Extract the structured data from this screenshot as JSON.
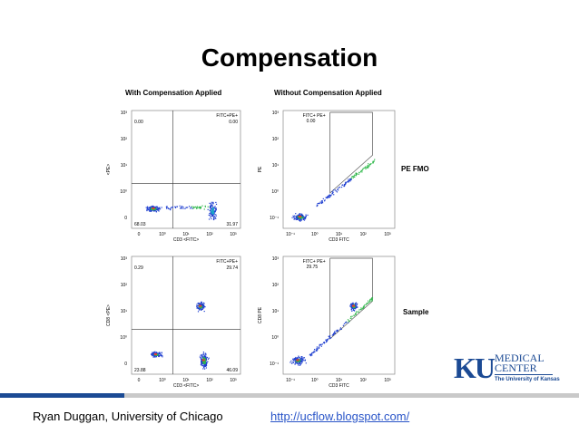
{
  "slide": {
    "title": "Compensation",
    "credit": "Ryan Duggan, University of Chicago",
    "link": "http://ucflow.blogspot.com/"
  },
  "figure": {
    "columns": [
      "With Compensation Applied",
      "Without Compensation Applied"
    ],
    "row_labels": [
      "PE FMO",
      "Sample"
    ],
    "panels": [
      {
        "id": "with-fmo",
        "ylabel": "<PE>",
        "xlabel": "CD3 <FITC>",
        "y_ticks": [
          "10³",
          "10²",
          "10¹",
          "10⁰",
          "0"
        ],
        "x_ticks": [
          "0",
          "10⁰",
          "10¹",
          "10²",
          "10³"
        ],
        "gate_label": "FITC+PE+",
        "quadrants": {
          "ul": "0.00",
          "ur": "0.00",
          "ll": "68.03",
          "lr": "31.97"
        }
      },
      {
        "id": "without-fmo",
        "ylabel": "PE",
        "xlabel": "CD3 FITC",
        "y_ticks": [
          "10³",
          "10²",
          "10¹",
          "10⁰",
          "10⁻¹"
        ],
        "x_ticks": [
          "10⁻¹",
          "10⁰",
          "10¹",
          "10²",
          "10³"
        ],
        "gate_label": "FITC+ PE+",
        "gate_value": "0.00"
      },
      {
        "id": "with-sample",
        "ylabel": "CD8 <PE>",
        "xlabel": "CD3 <FITC>",
        "y_ticks": [
          "10³",
          "10²",
          "10¹",
          "10⁰",
          "0"
        ],
        "x_ticks": [
          "0",
          "10⁰",
          "10¹",
          "10²",
          "10³"
        ],
        "gate_label": "FITC+PE+",
        "quadrants": {
          "ul": "0.29",
          "ur": "29.74",
          "ll": "23.88",
          "lr": "46.09"
        }
      },
      {
        "id": "without-sample",
        "ylabel": "CD8 PE",
        "xlabel": "CD3 FITC",
        "y_ticks": [
          "10³",
          "10²",
          "10¹",
          "10⁰",
          "10⁻¹"
        ],
        "x_ticks": [
          "10⁻¹",
          "10⁰",
          "10¹",
          "10²",
          "10³"
        ],
        "gate_label": "FITC+ PE+",
        "gate_value": "29.75"
      }
    ]
  },
  "logo": {
    "mark": "KU",
    "line1": "MEDICAL",
    "line2": "CENTER",
    "tagline": "The University of Kansas"
  },
  "colors": {
    "accent_blue": "#1b4a94",
    "link": "#2a55c8",
    "footer_gray": "#c9c9c9"
  }
}
